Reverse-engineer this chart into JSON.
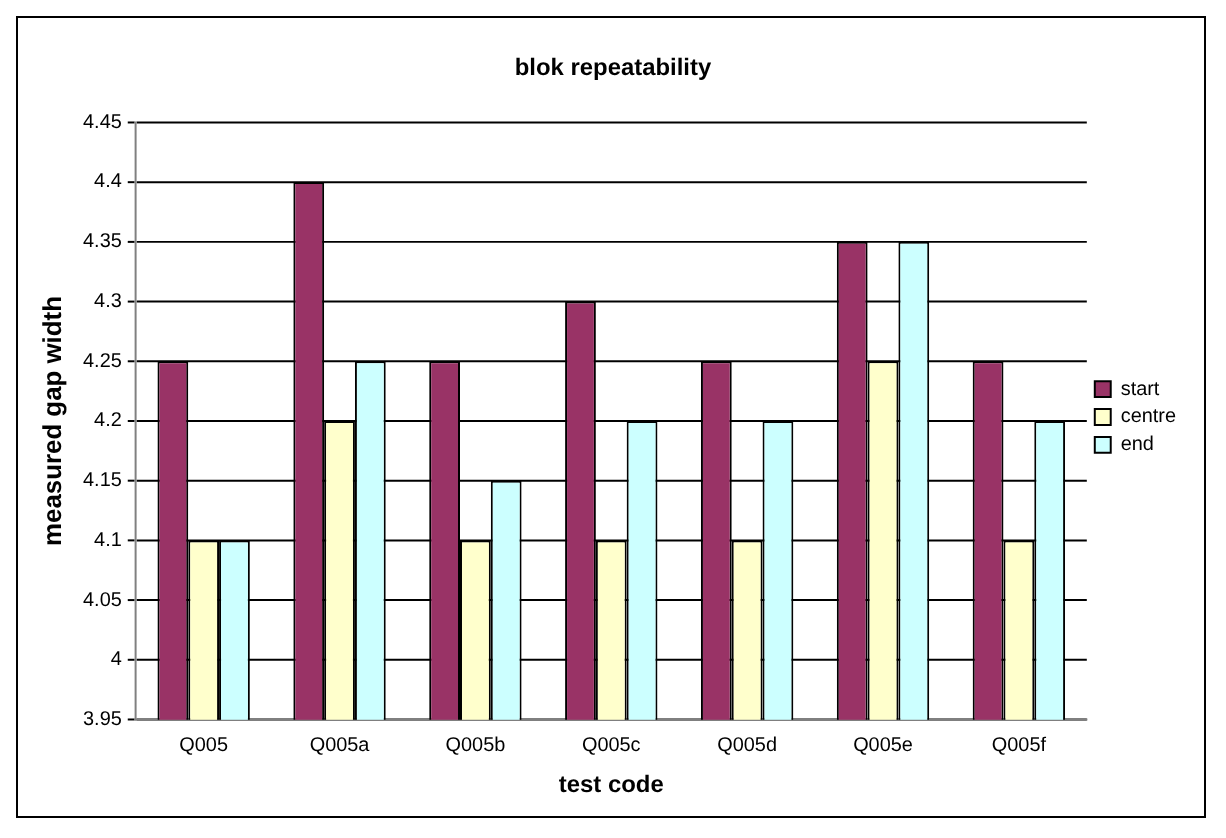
{
  "chart_data": {
    "type": "bar",
    "title": "blok repeatability",
    "xlabel": "test code",
    "ylabel": "measured gap width",
    "categories": [
      "Q005",
      "Q005a",
      "Q005b",
      "Q005c",
      "Q005d",
      "Q005e",
      "Q005f"
    ],
    "series": [
      {
        "name": "start",
        "color": "#993366",
        "values": [
          4.25,
          4.4,
          4.25,
          4.3,
          4.25,
          4.35,
          4.25
        ]
      },
      {
        "name": "centre",
        "color": "#ffffcc",
        "values": [
          4.1,
          4.2,
          4.1,
          4.1,
          4.1,
          4.25,
          4.1
        ]
      },
      {
        "name": "end",
        "color": "#ccffff",
        "values": [
          4.1,
          4.25,
          4.15,
          4.2,
          4.2,
          4.35,
          4.2
        ]
      }
    ],
    "ylim": [
      3.95,
      4.45
    ],
    "yticks": [
      3.95,
      4,
      4.05,
      4.1,
      4.15,
      4.2,
      4.25,
      4.3,
      4.35,
      4.4,
      4.45
    ],
    "grid": "y",
    "legend": "right"
  }
}
